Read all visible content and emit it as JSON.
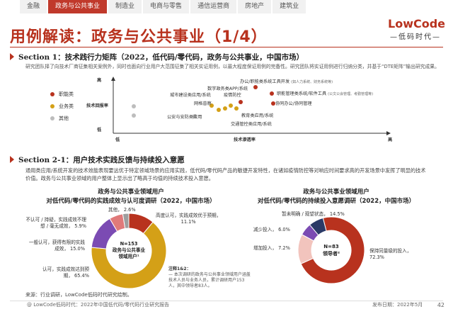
{
  "tabs": [
    "金融",
    "政务与公共事业",
    "制造业",
    "电商与零售",
    "通信运营商",
    "房地产",
    "建筑业"
  ],
  "active_tab": 1,
  "page_title": "用例解读：政务与公共事业（1/4）",
  "logo": {
    "line1": "LowCode",
    "line2": "—低码时代—"
  },
  "section1": {
    "title": "Section 1：技术践行力矩阵（2022，低代码/零代码，政务与公共事业，中国市场）",
    "desc": "研究团队择了向技术厂商征集相关案例外，同时也面向行业用户大范围征集了相关实证用例，以最大程度保证用例的完备性。研究团队将实证用例进行归纳分类，并基于“DTE矩阵”输出研究成果。",
    "legend": [
      {
        "label": "职能类",
        "color": "#b8321e"
      },
      {
        "label": "业务类",
        "color": "#d4a017"
      },
      {
        "label": "其他",
        "color": "#bdbdbd"
      }
    ],
    "y_axis": {
      "label": "技术回报率",
      "high": "高",
      "low": "低"
    },
    "x_axis": {
      "label": "技术渗透率",
      "low": "低",
      "high": "高"
    },
    "points": [
      {
        "label": "办公/职能类系统工具开发",
        "note": "(如人力系统、财务系统等)"
      },
      {
        "label": "数字政务类APP/系统"
      },
      {
        "label": "城市建设类应用/系统"
      },
      {
        "label": "疫情防控"
      },
      {
        "label": "职能管理类系统/软件工具",
        "note": "(公文公会管理、考勤管理等)"
      },
      {
        "label": "网格普察"
      },
      {
        "label": "协同办公/协同管理"
      },
      {
        "label": "公安与安防类应用"
      },
      {
        "label": "教育类应用/系统"
      },
      {
        "label": "交通管控类应用/系统"
      }
    ]
  },
  "section2": {
    "title": "Section 2-1：用户技术实践反馈与持续投入意愿",
    "desc": "通用类应用/系统开发的技术效能表现要远优于特定领域场景的应用实践，低代码/零代码产品的敏捷开发特性，在诸如疫情防控等对响应时间要求高的开发场景中发挥了明显的技术价值。政务与公共事业领域的用户整体上显示出了略高于均值的持续技术投入意愿。",
    "chart1": {
      "title_line1": "政务与公共事业领域用户",
      "title_line2": "对低代码/零代码的实践成效与认可度调研（2022，中国市场）",
      "center_line1": "N=153",
      "center_line2": "政务与公共事业",
      "center_line3": "领域用户¹"
    },
    "chart2": {
      "title_line1": "政务与公共事业领域用户",
      "title_line2": "对低代码/零代码的持续投入意愿调研（2022，中国市场）",
      "center_line1": "N=83",
      "center_line2": "领导者²"
    },
    "notes": {
      "title": "注释1&2：",
      "text": "— 本次调研的政务与公共事业领域用户涵盖技术人员与业务人员，累计调研用户153人，其中领导者83人。"
    }
  },
  "chart_data": [
    {
      "type": "pie",
      "title": "政务与公共事业领域用户对低代码/零代码的实践成效与认可度调研（2022，中国市场）",
      "categories": [
        "高度认可，实践成效优于预期，",
        "认可，实践成效达到预期，",
        "一般认可，获得有限的实践成效，",
        "不认可 / 持疑，实践成效不理想 / 毫无成效，",
        "其他，"
      ],
      "values": [
        11.1,
        65.4,
        15.0,
        5.9,
        2.6
      ],
      "colors": [
        "#b8321e",
        "#d4a017",
        "#7b4bb3",
        "#e07a7a",
        "#9e9e9e"
      ]
    },
    {
      "type": "pie",
      "title": "政务与公共事业领域用户对低代码/零代码的持续投入意愿调研（2022，中国市场）",
      "categories": [
        "保持同量级的投入，",
        "暂未明确 / 观望状态，",
        "减少投入，",
        "增加投入，"
      ],
      "values": [
        72.3,
        14.5,
        6.0,
        7.2
      ],
      "colors": [
        "#b8321e",
        "#f2c4bd",
        "#7b4bb3",
        "#2b3a67"
      ]
    }
  ],
  "source": "来源：行业调研，LowCode低码时代研究绘制。",
  "footer_left": "@ LowCode低码时代：2022年中国低代码/零代码行业研究报告",
  "footer_right": "发布日期：2022年5月",
  "page_number": "42"
}
